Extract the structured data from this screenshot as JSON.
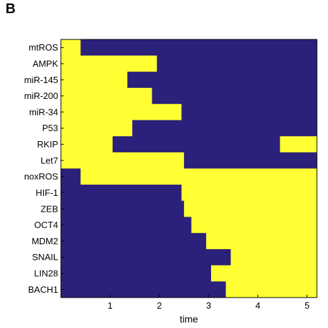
{
  "panel_label": "B",
  "chart_data": {
    "type": "heatmap",
    "xlabel": "time",
    "ylabel": "",
    "title": "",
    "xlim": [
      0,
      5.2
    ],
    "xticks": [
      1,
      2,
      3,
      4,
      5
    ],
    "colors": {
      "on": "#ffff33",
      "off": "#2b207a"
    },
    "rows": [
      {
        "name": "mtROS",
        "segments": [
          [
            0,
            0.4,
            1
          ],
          [
            0.4,
            5.2,
            0
          ]
        ]
      },
      {
        "name": "AMPK",
        "segments": [
          [
            0,
            1.95,
            1
          ],
          [
            1.95,
            5.2,
            0
          ]
        ]
      },
      {
        "name": "miR-145",
        "segments": [
          [
            0,
            1.35,
            1
          ],
          [
            1.35,
            5.2,
            0
          ]
        ]
      },
      {
        "name": "miR-200",
        "segments": [
          [
            0,
            1.85,
            1
          ],
          [
            1.85,
            5.2,
            0
          ]
        ]
      },
      {
        "name": "miR-34",
        "segments": [
          [
            0,
            2.45,
            1
          ],
          [
            2.45,
            5.2,
            0
          ]
        ]
      },
      {
        "name": "P53",
        "segments": [
          [
            0,
            1.45,
            1
          ],
          [
            1.45,
            5.2,
            0
          ]
        ]
      },
      {
        "name": "RKIP",
        "segments": [
          [
            0,
            1.05,
            1
          ],
          [
            1.05,
            4.45,
            0
          ],
          [
            4.45,
            5.2,
            1
          ]
        ]
      },
      {
        "name": "Let7",
        "segments": [
          [
            0,
            2.5,
            1
          ],
          [
            2.5,
            5.2,
            0
          ]
        ]
      },
      {
        "name": "noxROS",
        "segments": [
          [
            0,
            0.4,
            0
          ],
          [
            0.4,
            5.2,
            1
          ]
        ]
      },
      {
        "name": "HIF-1",
        "segments": [
          [
            0,
            2.45,
            0
          ],
          [
            2.45,
            5.2,
            1
          ]
        ]
      },
      {
        "name": "ZEB",
        "segments": [
          [
            0,
            2.5,
            0
          ],
          [
            2.5,
            5.2,
            1
          ]
        ]
      },
      {
        "name": "OCT4",
        "segments": [
          [
            0,
            2.65,
            0
          ],
          [
            2.65,
            5.2,
            1
          ]
        ]
      },
      {
        "name": "MDM2",
        "segments": [
          [
            0,
            2.95,
            0
          ],
          [
            2.95,
            5.2,
            1
          ]
        ]
      },
      {
        "name": "SNAIL",
        "segments": [
          [
            0,
            3.45,
            0
          ],
          [
            3.45,
            5.2,
            1
          ]
        ]
      },
      {
        "name": "LIN28",
        "segments": [
          [
            0,
            3.05,
            0
          ],
          [
            3.05,
            5.2,
            1
          ]
        ]
      },
      {
        "name": "BACH1",
        "segments": [
          [
            0,
            3.35,
            0
          ],
          [
            3.35,
            5.2,
            1
          ]
        ]
      }
    ]
  }
}
